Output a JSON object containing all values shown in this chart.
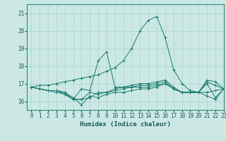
{
  "xlabel": "Humidex (Indice chaleur)",
  "xlim": [
    -0.5,
    23
  ],
  "ylim": [
    15.5,
    21.5
  ],
  "yticks": [
    16,
    17,
    18,
    19,
    20,
    21
  ],
  "xticks": [
    0,
    1,
    2,
    3,
    4,
    5,
    6,
    7,
    8,
    9,
    10,
    11,
    12,
    13,
    14,
    15,
    16,
    17,
    18,
    19,
    20,
    21,
    22,
    23
  ],
  "bg_color": "#cce8e4",
  "grid_color": "#a8d4cc",
  "line_color": "#1a7a6e",
  "spine_color": "#2a8a7a",
  "series": [
    [
      16.8,
      16.9,
      16.9,
      17.0,
      17.1,
      17.2,
      17.3,
      17.4,
      17.5,
      17.7,
      17.9,
      18.3,
      19.0,
      20.0,
      20.6,
      20.8,
      19.6,
      17.8,
      17.0,
      16.6,
      16.5,
      17.2,
      17.1,
      16.7
    ],
    [
      16.8,
      16.7,
      16.6,
      16.6,
      16.5,
      16.1,
      16.1,
      16.5,
      16.4,
      16.5,
      16.6,
      16.7,
      16.8,
      16.8,
      16.8,
      16.9,
      17.0,
      16.7,
      16.5,
      16.5,
      16.5,
      16.5,
      16.6,
      16.7
    ],
    [
      16.8,
      16.7,
      16.6,
      16.6,
      16.5,
      16.2,
      15.8,
      16.3,
      16.2,
      16.4,
      16.5,
      16.5,
      16.6,
      16.7,
      16.7,
      16.8,
      17.0,
      16.7,
      16.5,
      16.5,
      16.5,
      16.3,
      16.1,
      16.7
    ],
    [
      16.8,
      16.7,
      16.6,
      16.6,
      16.4,
      16.1,
      16.7,
      16.6,
      18.3,
      18.8,
      16.8,
      16.8,
      16.9,
      17.0,
      17.0,
      17.1,
      17.2,
      16.8,
      16.5,
      16.5,
      16.5,
      17.0,
      16.2,
      16.7
    ],
    [
      16.8,
      16.7,
      16.6,
      16.5,
      16.4,
      16.1,
      16.1,
      16.2,
      16.5,
      16.5,
      16.7,
      16.8,
      16.8,
      16.9,
      16.9,
      17.0,
      17.1,
      16.7,
      16.5,
      16.5,
      16.5,
      17.1,
      16.9,
      16.7
    ]
  ]
}
